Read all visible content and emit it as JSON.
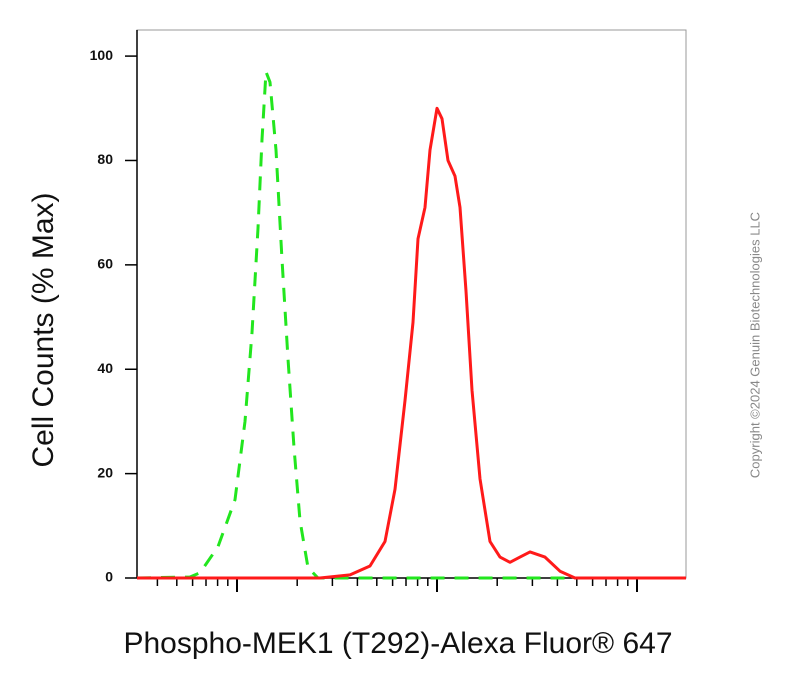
{
  "chart_data": {
    "type": "line",
    "x_label": "Phospho-MEK1 (T292)-Alexa Fluor® 647",
    "y_label": "Cell Counts (% Max)",
    "copyright": "Copyright ©2024 Genuin Biotechnologies LLC",
    "log_x": true,
    "xlim": [
      -0.5,
      2.245
    ],
    "xticks": [
      0,
      1,
      2
    ],
    "xminor_ticks": [
      -0.398,
      -0.301,
      -0.222,
      -0.155,
      -0.097,
      -0.046,
      0.301,
      0.477,
      0.602,
      0.699,
      0.778,
      0.845,
      0.903,
      0.954,
      1.301,
      1.477,
      1.602,
      1.699,
      1.778,
      1.845,
      1.903,
      1.954
    ],
    "ylim": [
      0,
      105
    ],
    "yticks": [
      0,
      20,
      40,
      60,
      80,
      100
    ],
    "series": [
      {
        "color": "#22e61e",
        "dashed": true,
        "x": [
          -0.5,
          -0.235,
          -0.185,
          -0.095,
          -0.01,
          0.04,
          0.075,
          0.105,
          0.125,
          0.145,
          0.165,
          0.195,
          0.225,
          0.255,
          0.285,
          0.315,
          0.355,
          0.405,
          2.245
        ],
        "values": [
          0,
          0.2,
          1,
          6,
          15,
          30,
          47,
          67,
          84,
          97,
          95,
          82,
          61,
          42,
          25,
          11,
          2,
          0,
          0
        ]
      },
      {
        "color": "#ff1a1a",
        "dashed": false,
        "x": [
          -0.5,
          0.415,
          0.565,
          0.665,
          0.74,
          0.79,
          0.84,
          0.88,
          0.905,
          0.94,
          0.965,
          1.0,
          1.025,
          1.055,
          1.09,
          1.115,
          1.145,
          1.175,
          1.215,
          1.265,
          1.315,
          1.365,
          1.415,
          1.465,
          1.54,
          1.615,
          1.69,
          2.245
        ],
        "values": [
          0,
          0,
          0.6,
          2.3,
          7,
          17,
          34,
          49,
          65,
          71,
          82,
          90,
          88,
          80,
          77,
          71,
          55,
          36,
          19,
          7,
          4,
          3,
          4,
          5,
          4,
          1.3,
          0,
          0
        ]
      }
    ]
  }
}
